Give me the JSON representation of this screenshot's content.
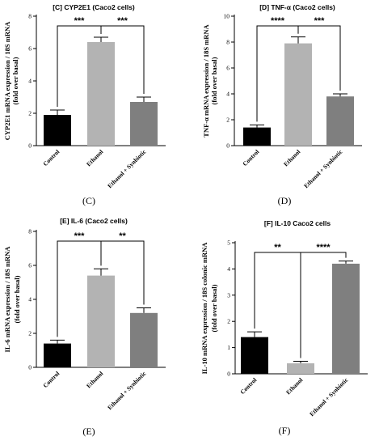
{
  "chart_data": [
    {
      "type": "bar",
      "title": "[C] CYP2E1 (Caco2 cells)",
      "ylabel": "CYP2E1 mRNA expression / 18S mRNA",
      "ylabel2": "(fold over basal)",
      "caption": "(C)",
      "ylim": [
        0,
        8
      ],
      "yticks": [
        "0",
        "2",
        "4",
        "6",
        "8"
      ],
      "categories": [
        "Control",
        "Ethanol",
        "Ethanol + Synbiotic"
      ],
      "values": [
        1.9,
        6.4,
        2.7
      ],
      "errors": [
        0.3,
        0.3,
        0.3
      ],
      "colors": [
        "#000000",
        "#b3b3b3",
        "#7f7f7f"
      ],
      "significance": [
        {
          "from": 0,
          "to": 1,
          "label": "***"
        },
        {
          "from": 1,
          "to": 2,
          "label": "***"
        }
      ]
    },
    {
      "type": "bar",
      "title": "[D] TNF-α (Caco2 cells)",
      "ylabel": "TNF-α mRNA expression / 18S mRNA",
      "ylabel2": "(fold over basal)",
      "caption": "(D)",
      "ylim": [
        0,
        10
      ],
      "yticks": [
        "0",
        "2",
        "4",
        "6",
        "8",
        "10"
      ],
      "categories": [
        "Control",
        "Ethanol",
        "Ethanol + Synbiotic"
      ],
      "values": [
        1.4,
        7.9,
        3.8
      ],
      "errors": [
        0.2,
        0.5,
        0.2
      ],
      "colors": [
        "#000000",
        "#b3b3b3",
        "#7f7f7f"
      ],
      "significance": [
        {
          "from": 0,
          "to": 1,
          "label": "****"
        },
        {
          "from": 1,
          "to": 2,
          "label": "***"
        }
      ]
    },
    {
      "type": "bar",
      "title": "[E] IL-6 (Caco2 cells)",
      "ylabel": "IL-6 mRNA expression / 18S mRNA",
      "ylabel2": "(fold over basal)",
      "caption": "(E)",
      "ylim": [
        0,
        8
      ],
      "yticks": [
        "0",
        "2",
        "4",
        "6",
        "8"
      ],
      "categories": [
        "Control",
        "Ethanol",
        "Ethanol + Synbiotic"
      ],
      "values": [
        1.4,
        5.4,
        3.2
      ],
      "errors": [
        0.2,
        0.4,
        0.3
      ],
      "colors": [
        "#000000",
        "#b3b3b3",
        "#7f7f7f"
      ],
      "significance": [
        {
          "from": 0,
          "to": 1,
          "label": "***"
        },
        {
          "from": 1,
          "to": 2,
          "label": "**"
        }
      ]
    },
    {
      "type": "bar",
      "title": "[F] IL-10 Caco2 cells",
      "ylabel": "IL-10 mRNA expression / 18S colonic mRNA",
      "ylabel2": "(fold over basal)",
      "caption": "(F)",
      "ylim": [
        0,
        5
      ],
      "yticks": [
        "0",
        "1",
        "2",
        "3",
        "4",
        "5"
      ],
      "categories": [
        "Control",
        "Ethanol",
        "Ethanol + Synbiotic"
      ],
      "values": [
        1.4,
        0.4,
        4.2
      ],
      "errors": [
        0.2,
        0.08,
        0.1
      ],
      "colors": [
        "#000000",
        "#b3b3b3",
        "#7f7f7f"
      ],
      "significance": [
        {
          "from": 0,
          "to": 1,
          "label": "**"
        },
        {
          "from": 1,
          "to": 2,
          "label": "****"
        }
      ]
    }
  ]
}
